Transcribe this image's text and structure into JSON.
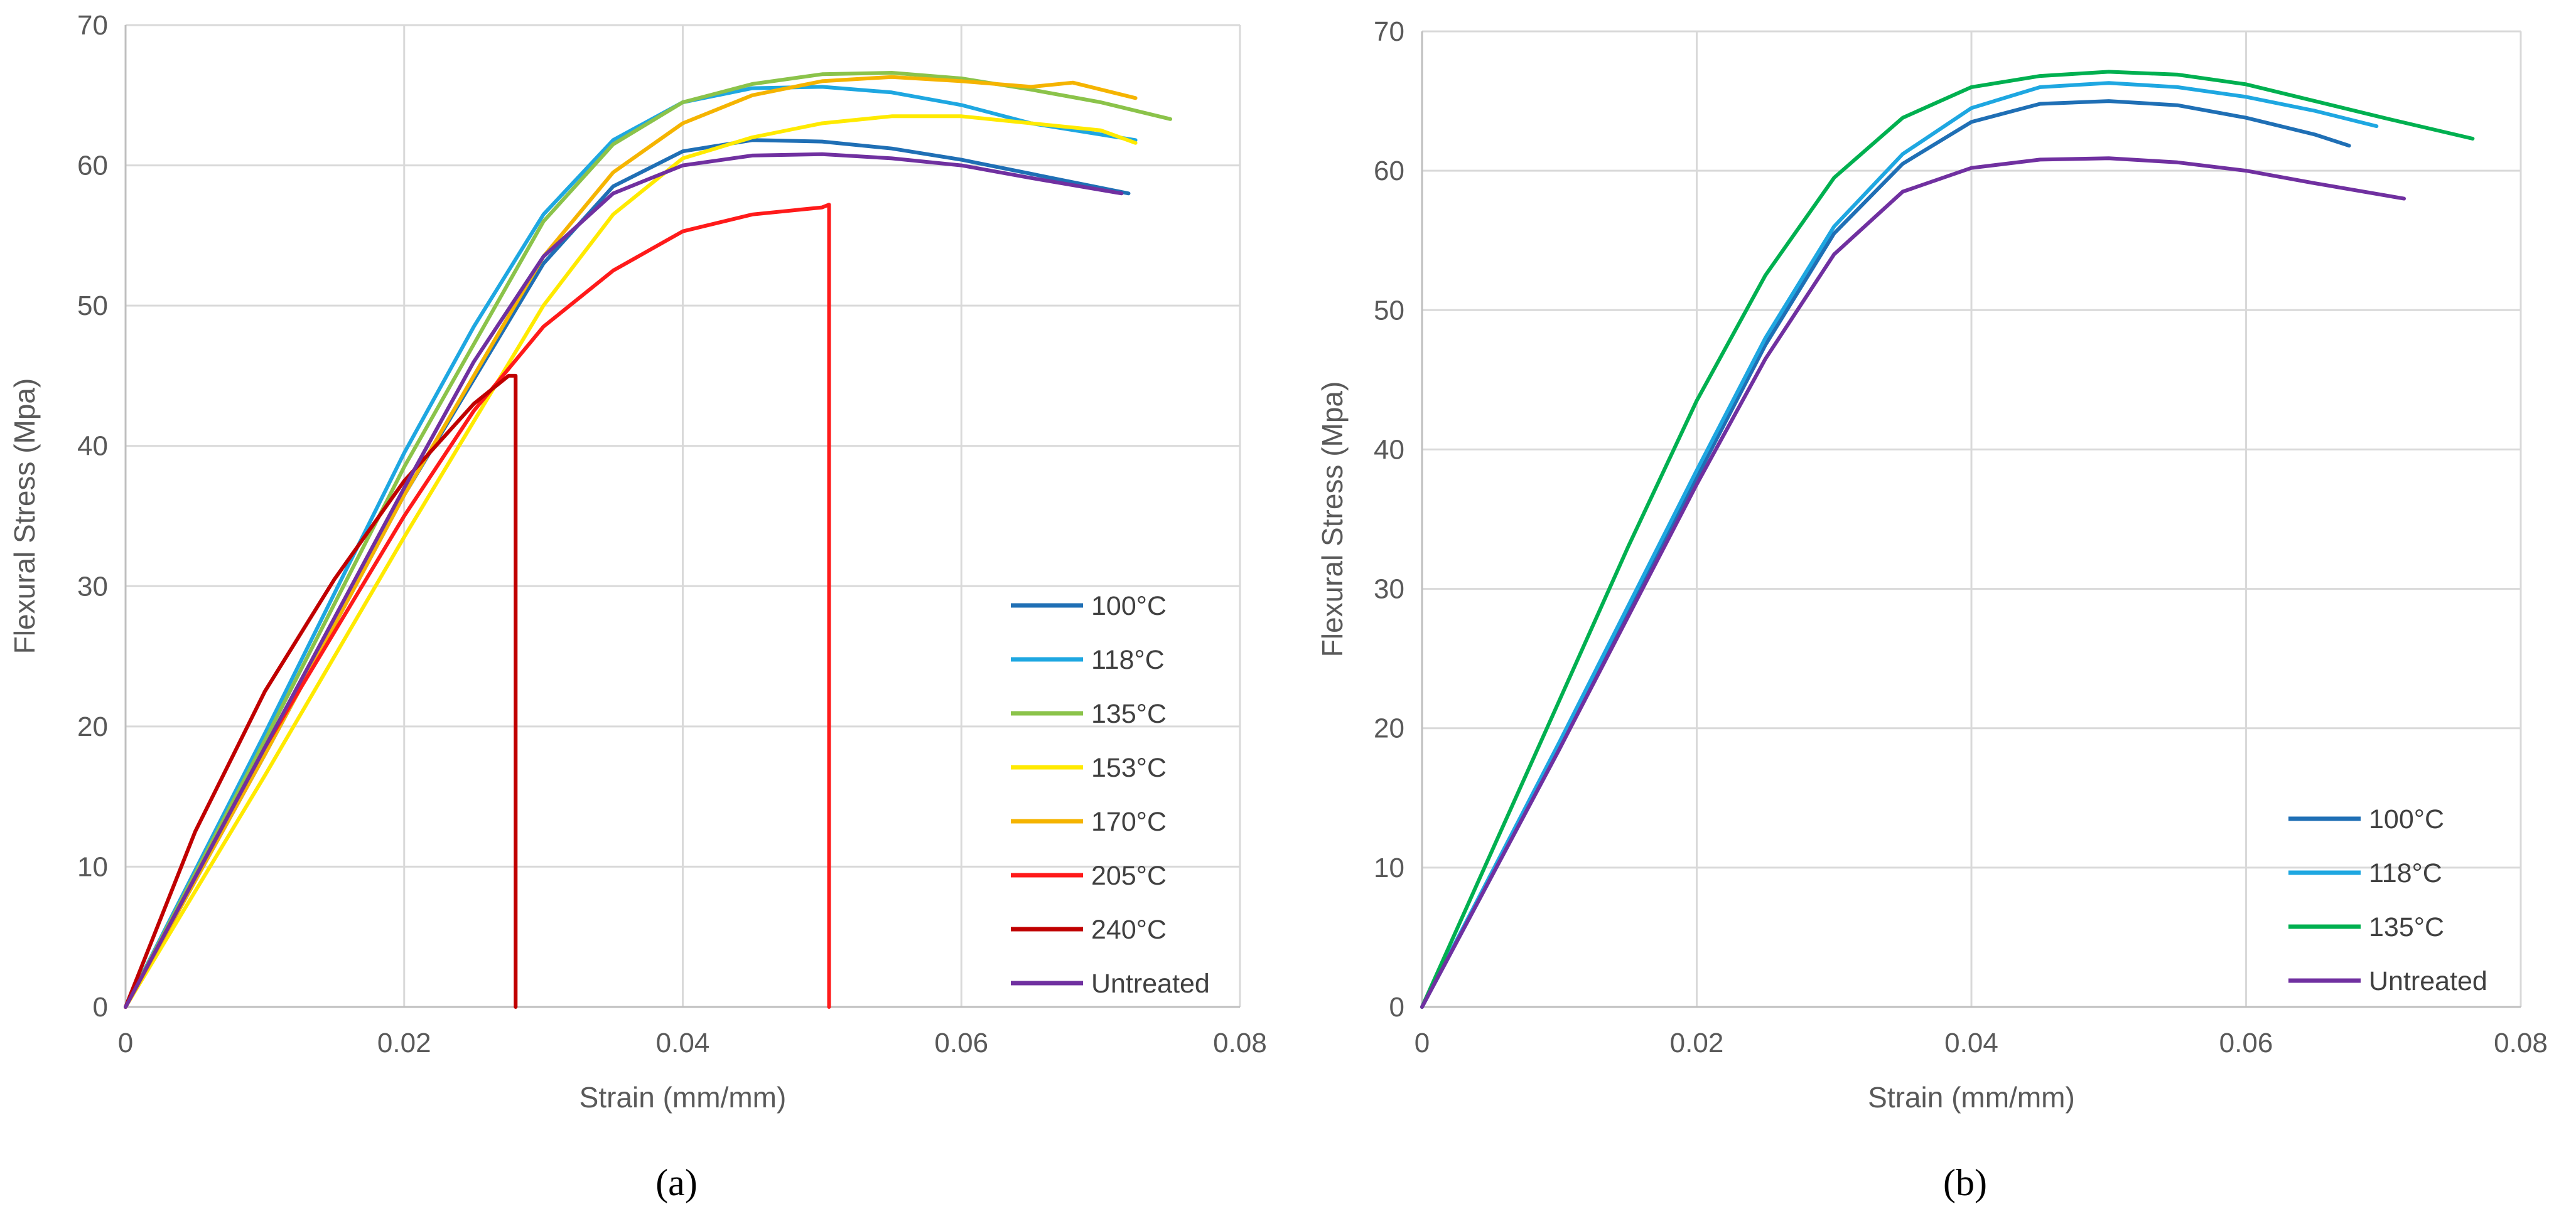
{
  "chart_data": [
    {
      "type": "line",
      "caption": "(a)",
      "xlabel": "Strain (mm/mm)",
      "ylabel": "Flexural Stress (Mpa)",
      "xlim": [
        0,
        0.08
      ],
      "ylim": [
        0,
        70
      ],
      "xticks": [
        "0",
        "0.02",
        "0.04",
        "0.06",
        "0.08"
      ],
      "yticks": [
        "0",
        "10",
        "20",
        "30",
        "40",
        "50",
        "60",
        "70"
      ],
      "grid": true,
      "legend_position": "bottom-right",
      "series": [
        {
          "name": "100°C",
          "color": "#1f6fb5",
          "x": [
            0,
            0.01,
            0.02,
            0.03,
            0.035,
            0.04,
            0.045,
            0.05,
            0.055,
            0.06,
            0.065,
            0.072
          ],
          "y": [
            0,
            18,
            36.5,
            53,
            58.5,
            61,
            61.8,
            61.7,
            61.2,
            60.4,
            59.4,
            58
          ]
        },
        {
          "name": "118°C",
          "color": "#1ea7e1",
          "x": [
            0,
            0.01,
            0.02,
            0.025,
            0.03,
            0.035,
            0.04,
            0.045,
            0.05,
            0.055,
            0.06,
            0.065,
            0.0725
          ],
          "y": [
            0,
            19.5,
            39.5,
            48.5,
            56.5,
            61.8,
            64.5,
            65.5,
            65.6,
            65.2,
            64.3,
            63,
            61.8
          ]
        },
        {
          "name": "135°C",
          "color": "#8bc34a",
          "x": [
            0,
            0.01,
            0.02,
            0.03,
            0.035,
            0.04,
            0.045,
            0.05,
            0.055,
            0.06,
            0.065,
            0.07,
            0.075
          ],
          "y": [
            0,
            19,
            38.5,
            56,
            61.5,
            64.5,
            65.8,
            66.5,
            66.6,
            66.2,
            65.4,
            64.5,
            63.3
          ]
        },
        {
          "name": "153°C",
          "color": "#ffea00",
          "x": [
            0,
            0.01,
            0.02,
            0.03,
            0.035,
            0.04,
            0.045,
            0.05,
            0.055,
            0.06,
            0.065,
            0.07,
            0.0725
          ],
          "y": [
            0,
            16.5,
            33.5,
            50,
            56.5,
            60.5,
            62,
            63,
            63.5,
            63.5,
            63,
            62.5,
            61.6
          ]
        },
        {
          "name": "170°C",
          "color": "#f5b400",
          "x": [
            0,
            0.01,
            0.02,
            0.03,
            0.035,
            0.04,
            0.045,
            0.05,
            0.055,
            0.06,
            0.065,
            0.068,
            0.0725
          ],
          "y": [
            0,
            18,
            36.5,
            53.5,
            59.5,
            63,
            65,
            66,
            66.3,
            66,
            65.6,
            65.9,
            64.8
          ]
        },
        {
          "name": "205°C",
          "color": "#ff1a1a",
          "x": [
            0,
            0.01,
            0.02,
            0.025,
            0.03,
            0.035,
            0.04,
            0.045,
            0.05,
            0.0505,
            0.0505
          ],
          "y": [
            0,
            18.5,
            35,
            42.5,
            48.5,
            52.5,
            55.3,
            56.5,
            57,
            57.2,
            0
          ]
        },
        {
          "name": "240°C",
          "color": "#c00000",
          "x": [
            0,
            0.005,
            0.01,
            0.015,
            0.02,
            0.025,
            0.0275,
            0.028,
            0.028
          ],
          "y": [
            0,
            12.5,
            22.5,
            30.5,
            37.5,
            43,
            45,
            45,
            0
          ]
        },
        {
          "name": "Untreated",
          "color": "#7030a0",
          "x": [
            0,
            0.01,
            0.02,
            0.025,
            0.03,
            0.035,
            0.04,
            0.045,
            0.05,
            0.055,
            0.06,
            0.065,
            0.0715
          ],
          "y": [
            0,
            18.5,
            37,
            46,
            53.5,
            58,
            60,
            60.7,
            60.8,
            60.5,
            60,
            59.1,
            58
          ]
        }
      ]
    },
    {
      "type": "line",
      "caption": "(b)",
      "xlabel": "Strain (mm/mm)",
      "ylabel": "Flexural Stress (Mpa)",
      "xlim": [
        0,
        0.08
      ],
      "ylim": [
        0,
        70
      ],
      "xticks": [
        "0",
        "0.02",
        "0.04",
        "0.06",
        "0.08"
      ],
      "yticks": [
        "0",
        "10",
        "20",
        "30",
        "40",
        "50",
        "60",
        "70"
      ],
      "grid": true,
      "legend_position": "bottom-right",
      "series": [
        {
          "name": "100°C",
          "color": "#1f6fb5",
          "x": [
            0,
            0.01,
            0.02,
            0.025,
            0.03,
            0.035,
            0.04,
            0.045,
            0.05,
            0.055,
            0.06,
            0.065,
            0.0675
          ],
          "y": [
            0,
            18.5,
            38,
            47.5,
            55.5,
            60.5,
            63.5,
            64.8,
            65,
            64.7,
            63.8,
            62.6,
            61.8
          ]
        },
        {
          "name": "118°C",
          "color": "#1ea7e1",
          "x": [
            0,
            0.01,
            0.02,
            0.025,
            0.03,
            0.035,
            0.04,
            0.045,
            0.05,
            0.055,
            0.06,
            0.065,
            0.0695
          ],
          "y": [
            0,
            19,
            38.5,
            48,
            56,
            61.2,
            64.5,
            66,
            66.3,
            66,
            65.3,
            64.3,
            63.2
          ]
        },
        {
          "name": "135°C",
          "color": "#00b050",
          "x": [
            0,
            0.005,
            0.01,
            0.015,
            0.02,
            0.025,
            0.03,
            0.035,
            0.04,
            0.045,
            0.05,
            0.055,
            0.06,
            0.065,
            0.07,
            0.0765
          ],
          "y": [
            0,
            11,
            22,
            33,
            43.5,
            52.5,
            59.5,
            63.8,
            66,
            66.8,
            67.1,
            66.9,
            66.2,
            65,
            63.8,
            62.3
          ]
        },
        {
          "name": "Untreated",
          "color": "#7030a0",
          "x": [
            0,
            0.01,
            0.02,
            0.025,
            0.03,
            0.035,
            0.04,
            0.045,
            0.05,
            0.055,
            0.06,
            0.065,
            0.0715
          ],
          "y": [
            0,
            18.5,
            37.5,
            46.5,
            54,
            58.5,
            60.2,
            60.8,
            60.9,
            60.6,
            60,
            59.1,
            58
          ]
        }
      ]
    }
  ]
}
